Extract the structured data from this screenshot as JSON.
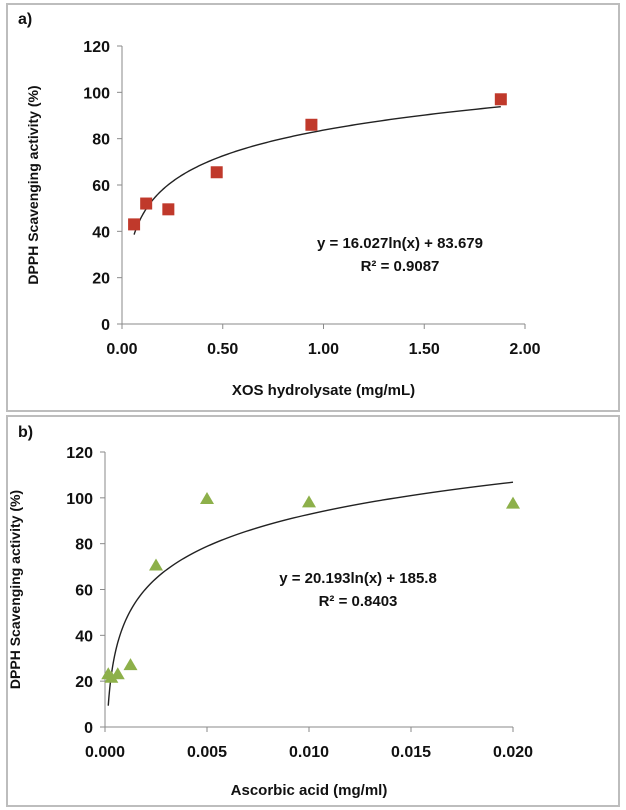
{
  "chart_data": [
    {
      "type": "scatter",
      "panel_label": "a)",
      "xlabel": "XOS hydrolysate (mg/mL)",
      "ylabel": "DPPH Scavenging activity (%)",
      "xlim": [
        0,
        2.0
      ],
      "ylim": [
        0,
        120
      ],
      "xticks": [
        "0.00",
        "0.50",
        "1.00",
        "1.50",
        "2.00"
      ],
      "xtick_values": [
        0,
        0.5,
        1.0,
        1.5,
        2.0
      ],
      "yticks": [
        "0",
        "20",
        "40",
        "60",
        "80",
        "100",
        "120"
      ],
      "ytick_values": [
        0,
        20,
        40,
        60,
        80,
        100,
        120
      ],
      "grid": false,
      "marker": "square",
      "marker_color": "#c0392b",
      "series": [
        {
          "name": "XOS hydrolysate",
          "x": [
            0.06,
            0.12,
            0.23,
            0.47,
            0.94,
            1.88
          ],
          "y": [
            43,
            52,
            49.5,
            65.5,
            86,
            97
          ]
        }
      ],
      "trendline": {
        "type": "log",
        "a": 16.027,
        "b": 83.679,
        "x_range": [
          0.06,
          1.88
        ]
      },
      "equation": "y = 16.027ln(x) + 83.679",
      "r_squared": "R² = 0.9087"
    },
    {
      "type": "scatter",
      "panel_label": "b)",
      "xlabel": "Ascorbic acid (mg/ml)",
      "ylabel": "DPPH Scavenging activity (%)",
      "xlim": [
        0,
        0.02
      ],
      "ylim": [
        0,
        120
      ],
      "xticks": [
        "0.000",
        "0.005",
        "0.010",
        "0.015",
        "0.020"
      ],
      "xtick_values": [
        0,
        0.005,
        0.01,
        0.015,
        0.02
      ],
      "yticks": [
        "0",
        "20",
        "40",
        "60",
        "80",
        "100",
        "120"
      ],
      "ytick_values": [
        0,
        20,
        40,
        60,
        80,
        100,
        120
      ],
      "grid": false,
      "marker": "triangle",
      "marker_color": "#8db04a",
      "series": [
        {
          "name": "Ascorbic acid",
          "x": [
            0.00016,
            0.00031,
            0.000625,
            0.00125,
            0.0025,
            0.005,
            0.01,
            0.02
          ],
          "y": [
            23,
            21.5,
            23,
            27,
            70.5,
            99.5,
            98,
            97.5
          ]
        }
      ],
      "trendline": {
        "type": "log",
        "a": 20.193,
        "b": 185.8,
        "x_range": [
          0.00016,
          0.02
        ]
      },
      "equation": "y = 20.193ln(x) + 185.8",
      "r_squared": "R² = 0.8403"
    }
  ]
}
